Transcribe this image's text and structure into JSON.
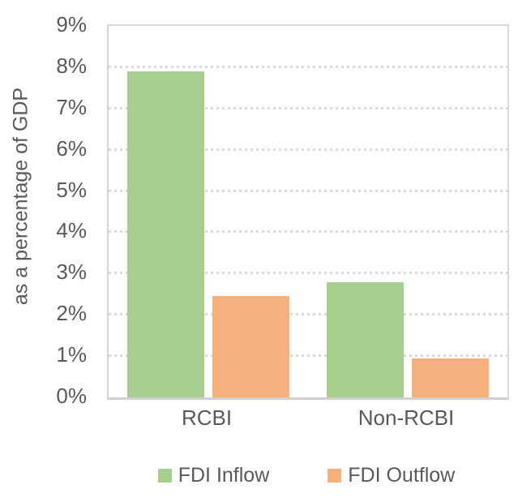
{
  "chart_data": {
    "type": "bar",
    "title": "",
    "categories": [
      "RCBI",
      "Non-RCBI"
    ],
    "series": [
      {
        "name": "FDI Inflow",
        "color": "#a6cf8d",
        "values": [
          7.9,
          2.8
        ]
      },
      {
        "name": "FDI Outflow",
        "color": "#f5b07e",
        "values": [
          2.45,
          0.95
        ]
      }
    ],
    "xlabel": "",
    "ylabel": "as a percentage of GDP",
    "ylim": [
      0,
      9
    ],
    "yticks": [
      "0%",
      "1%",
      "2%",
      "3%",
      "4%",
      "5%",
      "6%",
      "7%",
      "8%",
      "9%"
    ],
    "grid": "horizontal-dotted",
    "legend_position": "bottom"
  },
  "colors": {
    "text": "#595959",
    "axis": "#d4d4d4",
    "gridline": "#d9d9d9",
    "background": "#ffffff"
  }
}
